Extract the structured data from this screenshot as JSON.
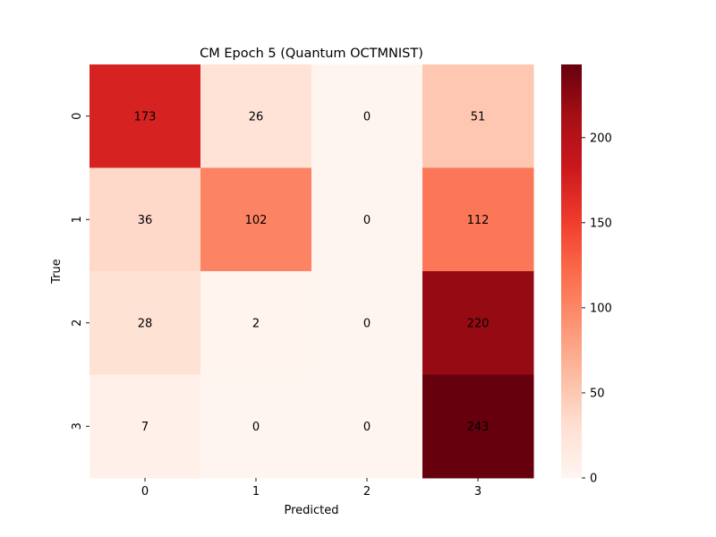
{
  "chart_data": {
    "type": "heatmap",
    "title": "CM Epoch 5 (Quantum OCTMNIST)",
    "xlabel": "Predicted",
    "ylabel": "True",
    "x_categories": [
      "0",
      "1",
      "2",
      "3"
    ],
    "y_categories": [
      "0",
      "1",
      "2",
      "3"
    ],
    "values": [
      [
        173,
        26,
        0,
        51
      ],
      [
        36,
        102,
        0,
        112
      ],
      [
        28,
        2,
        0,
        220
      ],
      [
        7,
        0,
        0,
        243
      ]
    ],
    "colormap": "Reds",
    "colorbar": {
      "min": 0,
      "max": 243,
      "ticks": [
        0,
        50,
        100,
        150,
        200
      ],
      "tick_labels": [
        "0",
        "50",
        "100",
        "150",
        "200"
      ]
    },
    "annotations": true
  }
}
